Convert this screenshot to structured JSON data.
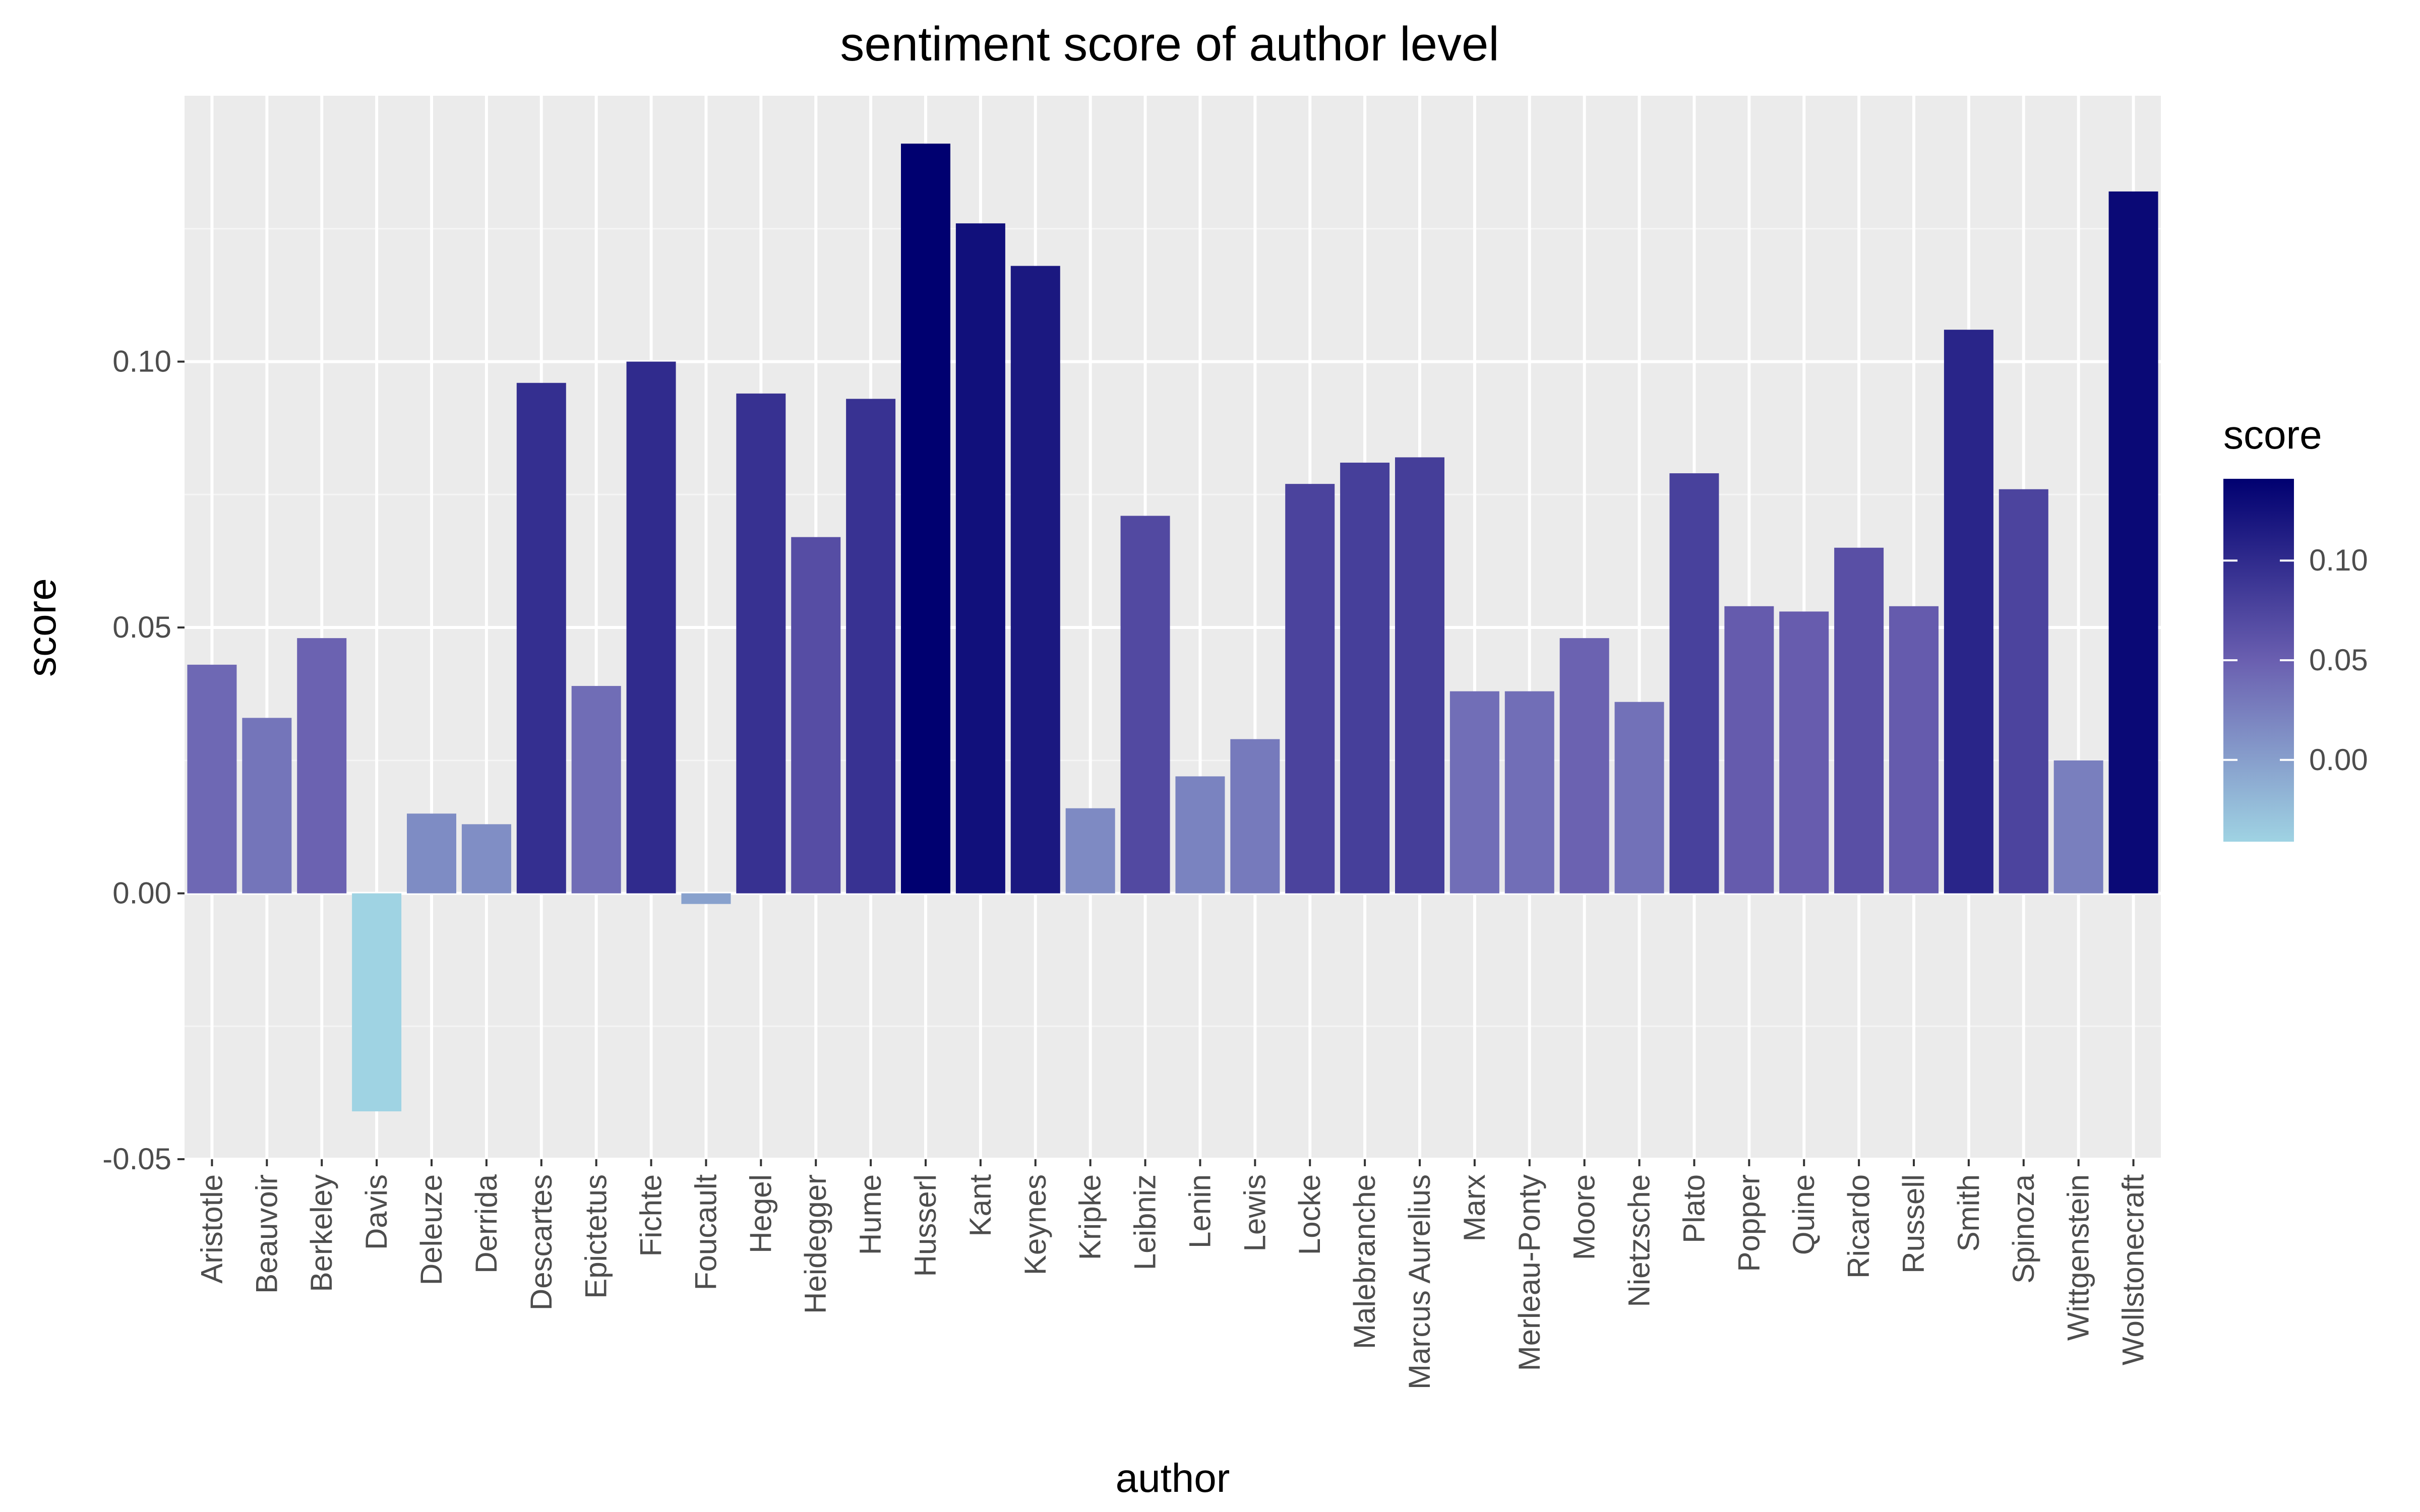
{
  "chart_data": {
    "type": "bar",
    "title": "sentiment score of author level",
    "xlabel": "author",
    "ylabel": "score",
    "ylim": [
      -0.05,
      0.15
    ],
    "yticks": [
      "-0.05",
      "0.00",
      "0.05",
      "0.10"
    ],
    "ytick_values": [
      -0.05,
      0.0,
      0.05,
      0.1
    ],
    "grid": true,
    "categories": [
      "Aristotle",
      "Beauvoir",
      "Berkeley",
      "Davis",
      "Deleuze",
      "Derrida",
      "Descartes",
      "Epictetus",
      "Fichte",
      "Foucault",
      "Hegel",
      "Heidegger",
      "Hume",
      "Husserl",
      "Kant",
      "Keynes",
      "Kripke",
      "Leibniz",
      "Lenin",
      "Lewis",
      "Locke",
      "Malebranche",
      "Marcus Aurelius",
      "Marx",
      "Merleau-Ponty",
      "Moore",
      "Nietzsche",
      "Plato",
      "Popper",
      "Quine",
      "Ricardo",
      "Russell",
      "Smith",
      "Spinoza",
      "Wittgenstein",
      "Wollstonecraft"
    ],
    "values": [
      0.043,
      0.033,
      0.048,
      -0.041,
      0.015,
      0.013,
      0.096,
      0.039,
      0.1,
      -0.002,
      0.094,
      0.067,
      0.093,
      0.141,
      0.126,
      0.118,
      0.016,
      0.071,
      0.022,
      0.029,
      0.077,
      0.081,
      0.082,
      0.038,
      0.038,
      0.048,
      0.036,
      0.079,
      0.054,
      0.053,
      0.065,
      0.054,
      0.106,
      0.076,
      0.025,
      0.132
    ],
    "legend": {
      "title": "score",
      "placement": "right",
      "ticks": [
        "0.00",
        "0.05",
        "0.10"
      ],
      "tick_values": [
        0.0,
        0.05,
        0.1
      ],
      "range": [
        -0.041,
        0.141
      ],
      "low_color": "#9fd3e3",
      "mid_color": "#6a5fb0",
      "high_color": "#000070"
    }
  }
}
